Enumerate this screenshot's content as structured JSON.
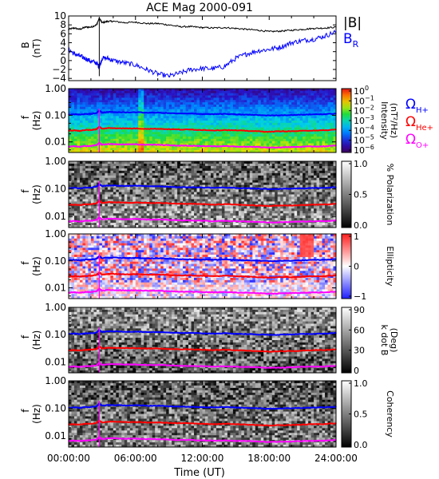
{
  "chart_data": {
    "title": "ACE Mag 2000-091",
    "type": "line",
    "xlabel": "Time (UT)",
    "x_ticks": [
      "00:00:00",
      "06:00:00",
      "12:00:00",
      "18:00:00",
      "24:00:00"
    ],
    "xlim": [
      0,
      24
    ],
    "x_unit_note": "hours UT",
    "panels": [
      {
        "id": "b-field",
        "type": "line",
        "ylabel_top": "B",
        "ylabel_unit": "(nT)",
        "ylim": [
          -4.5,
          10
        ],
        "yticks": [
          "10",
          "8",
          "6",
          "4",
          "2",
          "0",
          "−2",
          "−4"
        ],
        "ytick_values": [
          10,
          8,
          6,
          4,
          2,
          0,
          -2,
          -4
        ],
        "series": [
          {
            "name": "|B|",
            "color": "#000000",
            "x": [
              0,
              0.5,
              1,
              1.5,
              2,
              2.5,
              2.75,
              3,
              3.5,
              4,
              5,
              6,
              7,
              8,
              9,
              10,
              11,
              12,
              13,
              14,
              15,
              16,
              17,
              18,
              19,
              20,
              21,
              22,
              23,
              24
            ],
            "y": [
              7.0,
              7.3,
              7.0,
              7.5,
              7.5,
              8.0,
              9.5,
              8.5,
              8.8,
              8.8,
              8.5,
              8.6,
              8.3,
              8.3,
              8.0,
              7.6,
              7.6,
              7.4,
              7.3,
              7.4,
              7.2,
              7.0,
              6.8,
              6.5,
              6.6,
              6.8,
              7.0,
              7.2,
              7.3,
              7.5
            ]
          },
          {
            "name": "B_R",
            "color": "#0000ff",
            "x": [
              0,
              0.5,
              1,
              1.5,
              2,
              2.5,
              2.75,
              3,
              3.5,
              4,
              5,
              6,
              7,
              8,
              9,
              10,
              11,
              12,
              13,
              14,
              15,
              16,
              17,
              18,
              19,
              20,
              21,
              22,
              23,
              24
            ],
            "y": [
              2.5,
              1.5,
              1.0,
              0.5,
              -0.2,
              -0.5,
              -1.5,
              0.5,
              0.5,
              0.0,
              -0.5,
              -1.0,
              -2.0,
              -3.0,
              -3.5,
              -2.8,
              -2.0,
              -1.8,
              -1.8,
              -1.3,
              0.5,
              1.5,
              2.2,
              2.5,
              3.0,
              4.0,
              4.5,
              4.8,
              5.5,
              6.5
            ]
          }
        ],
        "legend": [
          {
            "text": "|B|",
            "color": "#000000"
          },
          {
            "text": "B",
            "sub": "R",
            "color": "#0000ff"
          }
        ]
      },
      {
        "id": "intensity",
        "type": "heatmap",
        "ylabel_top": "f",
        "ylabel_unit": "(Hz)",
        "yscale": "log",
        "ylim": [
          0.004,
          1.0
        ],
        "yticks": [
          "1.00",
          "0.10",
          "0.01"
        ],
        "ytick_values": [
          1.0,
          0.1,
          0.01
        ],
        "colormap": "rainbow",
        "colorbar_ticks": [
          {
            "base": "10",
            "exp": "0"
          },
          {
            "base": "10",
            "exp": "−1"
          },
          {
            "base": "10",
            "exp": "−2"
          },
          {
            "base": "10",
            "exp": "−3"
          },
          {
            "base": "10",
            "exp": "−4"
          },
          {
            "base": "10",
            "exp": "−5"
          },
          {
            "base": "10",
            "exp": "−6"
          }
        ],
        "colorbar_label": "Intensity",
        "colorbar_unit": "(nT²/Hz)",
        "legend": [
          {
            "text": "Ω",
            "sub": "H+",
            "color": "#0000ff"
          },
          {
            "text": "Ω",
            "sub": "He+",
            "color": "#ff0000"
          },
          {
            "text": "Ω",
            "sub": "O+",
            "color": "#ff00ff"
          }
        ]
      },
      {
        "id": "polarization",
        "type": "heatmap",
        "ylabel_top": "f",
        "ylabel_unit": "(Hz)",
        "yscale": "log",
        "ylim": [
          0.004,
          1.0
        ],
        "yticks": [
          "1.00",
          "0.10",
          "0.01"
        ],
        "ytick_values": [
          1.0,
          0.1,
          0.01
        ],
        "colormap": "gray",
        "colorbar_ticks": [
          "1.0",
          "0.5",
          "0.0"
        ],
        "colorbar_label": "% Polarization"
      },
      {
        "id": "ellipticity",
        "type": "heatmap",
        "ylabel_top": "f",
        "ylabel_unit": "(Hz)",
        "yscale": "log",
        "ylim": [
          0.004,
          1.0
        ],
        "yticks": [
          "1.00",
          "0.10",
          "0.01"
        ],
        "ytick_values": [
          1.0,
          0.1,
          0.01
        ],
        "colormap": "blue-white-red",
        "colorbar_ticks": [
          "1",
          "0",
          "−1"
        ],
        "colorbar_label": "Ellipticity"
      },
      {
        "id": "k-dot-b",
        "type": "heatmap",
        "ylabel_top": "f",
        "ylabel_unit": "(Hz)",
        "yscale": "log",
        "ylim": [
          0.004,
          1.0
        ],
        "yticks": [
          "1.00",
          "0.10",
          "0.01"
        ],
        "ytick_values": [
          1.0,
          0.1,
          0.01
        ],
        "colormap": "gray",
        "colorbar_ticks": [
          "90",
          "60",
          "30",
          "0"
        ],
        "colorbar_label": "k dot B",
        "colorbar_unit": "(Deg)"
      },
      {
        "id": "coherency",
        "type": "heatmap",
        "ylabel_top": "f",
        "ylabel_unit": "(Hz)",
        "yscale": "log",
        "ylim": [
          0.004,
          1.0
        ],
        "yticks": [
          "1.00",
          "0.10",
          "0.01"
        ],
        "ytick_values": [
          1.0,
          0.1,
          0.01
        ],
        "colormap": "gray",
        "colorbar_ticks": [
          "1.0",
          "0.5",
          "0.0"
        ],
        "colorbar_label": "Coherency"
      }
    ],
    "gyrofrequency_lines": [
      {
        "name": "ΩH+",
        "color": "#0000ff",
        "x": [
          0,
          0.5,
          1,
          1.5,
          2,
          2.5,
          2.75,
          3,
          3.5,
          4,
          5,
          6,
          7,
          8,
          9,
          10,
          11,
          12,
          13,
          14,
          15,
          16,
          17,
          18,
          19,
          20,
          21,
          22,
          23,
          24
        ],
        "y": [
          0.105,
          0.11,
          0.105,
          0.112,
          0.112,
          0.12,
          0.15,
          0.125,
          0.132,
          0.132,
          0.128,
          0.13,
          0.125,
          0.125,
          0.12,
          0.115,
          0.115,
          0.112,
          0.11,
          0.112,
          0.108,
          0.105,
          0.102,
          0.098,
          0.1,
          0.102,
          0.105,
          0.108,
          0.11,
          0.115
        ]
      },
      {
        "name": "ΩHe+",
        "color": "#ff0000",
        "x": [
          0,
          0.5,
          1,
          1.5,
          2,
          2.5,
          2.75,
          3,
          3.5,
          4,
          5,
          6,
          7,
          8,
          9,
          10,
          11,
          12,
          13,
          14,
          15,
          16,
          17,
          18,
          19,
          20,
          21,
          22,
          23,
          24
        ],
        "y": [
          0.026,
          0.027,
          0.026,
          0.028,
          0.028,
          0.03,
          0.037,
          0.031,
          0.033,
          0.033,
          0.032,
          0.032,
          0.031,
          0.031,
          0.03,
          0.029,
          0.029,
          0.028,
          0.027,
          0.028,
          0.027,
          0.026,
          0.025,
          0.024,
          0.025,
          0.025,
          0.026,
          0.027,
          0.027,
          0.029
        ]
      },
      {
        "name": "ΩO+",
        "color": "#ff00ff",
        "x": [
          0,
          0.5,
          1,
          1.5,
          2,
          2.5,
          2.75,
          3,
          3.5,
          4,
          5,
          6,
          7,
          8,
          9,
          10,
          11,
          12,
          13,
          14,
          15,
          16,
          17,
          18,
          19,
          20,
          21,
          22,
          23,
          24
        ],
        "y": [
          0.0066,
          0.0069,
          0.0066,
          0.007,
          0.007,
          0.0075,
          0.0093,
          0.0078,
          0.0083,
          0.0083,
          0.008,
          0.0081,
          0.0078,
          0.0078,
          0.0075,
          0.0072,
          0.0072,
          0.007,
          0.0068,
          0.007,
          0.0067,
          0.0066,
          0.0064,
          0.0061,
          0.0062,
          0.0064,
          0.0066,
          0.0067,
          0.0068,
          0.0072
        ]
      }
    ]
  }
}
